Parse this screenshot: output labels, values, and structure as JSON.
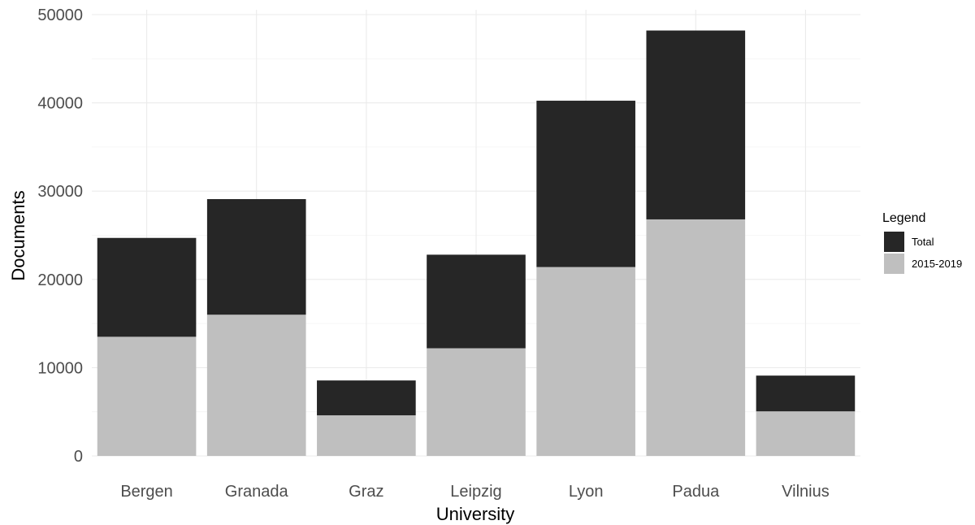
{
  "chart_data": {
    "type": "bar",
    "stacked": true,
    "categories": [
      "Bergen",
      "Granada",
      "Graz",
      "Leipzig",
      "Lyon",
      "Padua",
      "Vilnius"
    ],
    "series": [
      {
        "name": "2015-2019",
        "color": "#bfbfbf",
        "values": [
          13500,
          16000,
          4600,
          12200,
          21400,
          26800,
          5050
        ]
      },
      {
        "name": "Total",
        "color": "#262626",
        "values": [
          11200,
          13100,
          3950,
          10600,
          18850,
          21400,
          4050
        ]
      }
    ],
    "stack_totals": [
      24700,
      29100,
      8550,
      22800,
      40250,
      48200,
      9100
    ],
    "xlabel": "University",
    "ylabel": "Documents",
    "ylim": [
      0,
      50000
    ],
    "yticks": [
      "0",
      "10000",
      "20000",
      "30000",
      "40000",
      "50000"
    ],
    "grid": true,
    "legend": {
      "title": "Legend",
      "position": "right",
      "items": [
        {
          "label": "Total",
          "color": "#262626"
        },
        {
          "label": "2015-2019",
          "color": "#bfbfbf"
        }
      ]
    }
  }
}
